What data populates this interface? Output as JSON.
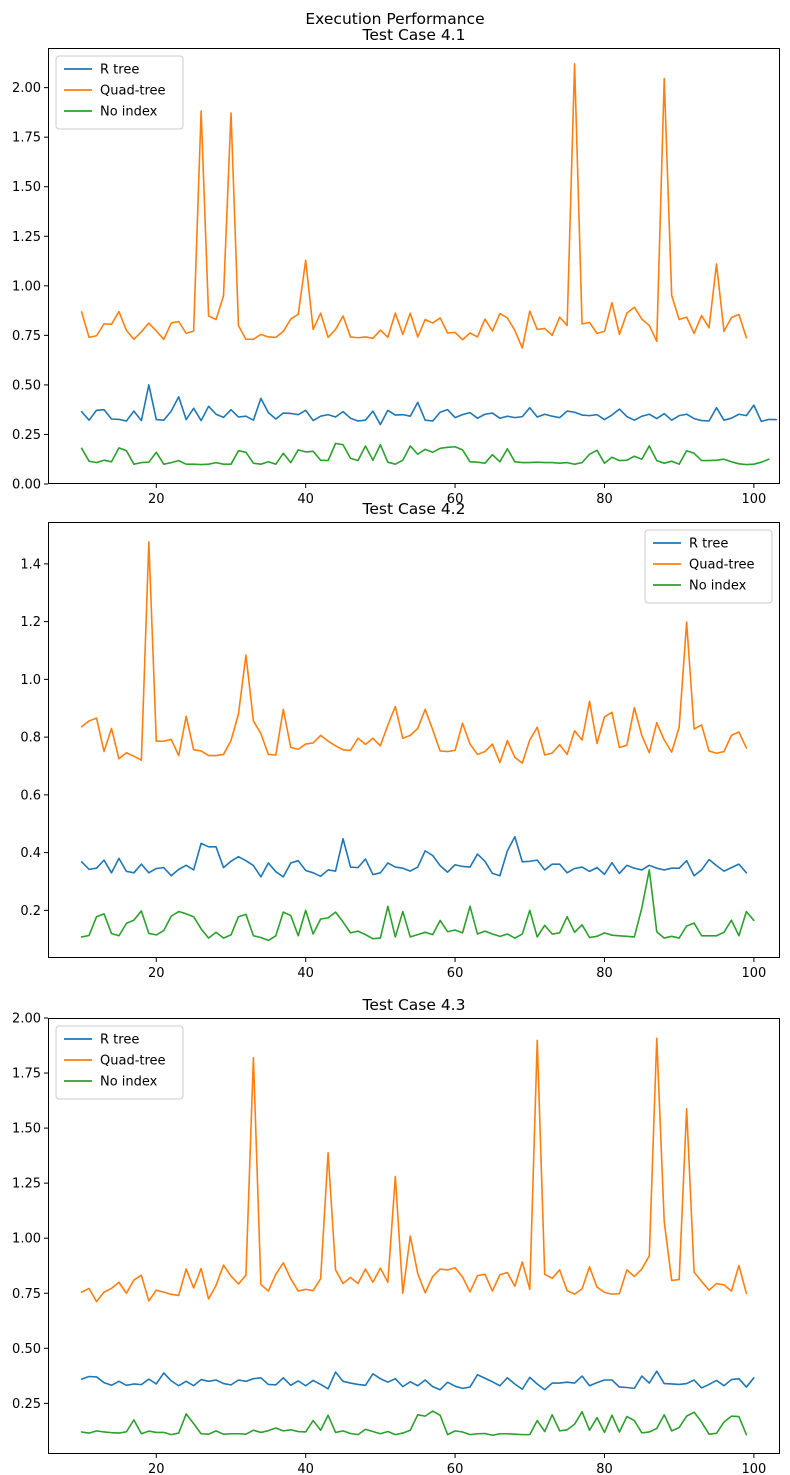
{
  "suptitle": "Execution Performance",
  "chart_data": [
    {
      "type": "line",
      "title": "Test Case 4.1",
      "xlabel": "",
      "ylabel": "",
      "xlim": [
        5.5,
        103.5
      ],
      "ylim": [
        0.0,
        2.2
      ],
      "xticks": [
        20,
        40,
        60,
        80,
        100
      ],
      "yticks": [
        0.0,
        0.25,
        0.5,
        0.75,
        1.0,
        1.25,
        1.5,
        1.75,
        2.0
      ],
      "ytick_labels": [
        "0.00",
        "0.25",
        "0.50",
        "0.75",
        "1.00",
        "1.25",
        "1.50",
        "1.75",
        "2.00"
      ],
      "legend_position": "upper-left",
      "x_start": 10,
      "series": [
        {
          "name": "R tree",
          "color": "#1f77b4",
          "values": [
            0.365,
            0.322,
            0.372,
            0.375,
            0.328,
            0.326,
            0.318,
            0.368,
            0.32,
            0.5,
            0.325,
            0.322,
            0.368,
            0.44,
            0.325,
            0.382,
            0.32,
            0.392,
            0.352,
            0.336,
            0.375,
            0.338,
            0.342,
            0.322,
            0.432,
            0.36,
            0.328,
            0.358,
            0.356,
            0.35,
            0.372,
            0.32,
            0.342,
            0.35,
            0.338,
            0.365,
            0.332,
            0.318,
            0.322,
            0.368,
            0.3,
            0.372,
            0.348,
            0.35,
            0.342,
            0.412,
            0.322,
            0.318,
            0.362,
            0.375,
            0.335,
            0.35,
            0.36,
            0.332,
            0.352,
            0.358,
            0.332,
            0.342,
            0.335,
            0.34,
            0.385,
            0.338,
            0.352,
            0.342,
            0.335,
            0.368,
            0.362,
            0.348,
            0.345,
            0.35,
            0.325,
            0.348,
            0.378,
            0.34,
            0.322,
            0.342,
            0.352,
            0.33,
            0.355,
            0.322,
            0.345,
            0.352,
            0.33,
            0.32,
            0.318,
            0.385,
            0.322,
            0.332,
            0.352,
            0.345,
            0.398,
            0.316,
            0.326,
            0.325
          ]
        },
        {
          "name": "Quad-tree",
          "color": "#ff7f0e",
          "values": [
            0.868,
            0.74,
            0.748,
            0.808,
            0.806,
            0.87,
            0.775,
            0.73,
            0.768,
            0.812,
            0.772,
            0.73,
            0.812,
            0.82,
            0.76,
            0.772,
            1.882,
            0.848,
            0.83,
            0.95,
            1.872,
            0.8,
            0.73,
            0.73,
            0.755,
            0.742,
            0.74,
            0.77,
            0.832,
            0.856,
            1.128,
            0.78,
            0.862,
            0.74,
            0.78,
            0.848,
            0.742,
            0.738,
            0.742,
            0.735,
            0.776,
            0.74,
            0.862,
            0.755,
            0.862,
            0.742,
            0.83,
            0.812,
            0.838,
            0.762,
            0.765,
            0.728,
            0.762,
            0.742,
            0.832,
            0.772,
            0.86,
            0.838,
            0.775,
            0.686,
            0.872,
            0.78,
            0.785,
            0.75,
            0.842,
            0.8,
            2.12,
            0.808,
            0.815,
            0.76,
            0.77,
            0.915,
            0.755,
            0.862,
            0.892,
            0.832,
            0.8,
            0.72,
            2.046,
            0.952,
            0.83,
            0.842,
            0.76,
            0.85,
            0.788,
            1.11,
            0.77,
            0.84,
            0.855,
            0.738
          ]
        },
        {
          "name": "No index",
          "color": "#2ca02c",
          "values": [
            0.18,
            0.115,
            0.108,
            0.12,
            0.112,
            0.182,
            0.168,
            0.1,
            0.108,
            0.11,
            0.16,
            0.1,
            0.108,
            0.118,
            0.1,
            0.1,
            0.098,
            0.1,
            0.108,
            0.1,
            0.1,
            0.168,
            0.16,
            0.105,
            0.1,
            0.112,
            0.1,
            0.155,
            0.108,
            0.172,
            0.162,
            0.165,
            0.12,
            0.118,
            0.205,
            0.198,
            0.13,
            0.118,
            0.192,
            0.12,
            0.198,
            0.11,
            0.1,
            0.12,
            0.192,
            0.15,
            0.175,
            0.16,
            0.18,
            0.185,
            0.188,
            0.172,
            0.112,
            0.11,
            0.105,
            0.148,
            0.112,
            0.178,
            0.112,
            0.108,
            0.108,
            0.11,
            0.108,
            0.108,
            0.105,
            0.108,
            0.1,
            0.108,
            0.15,
            0.17,
            0.105,
            0.135,
            0.118,
            0.12,
            0.14,
            0.125,
            0.192,
            0.118,
            0.105,
            0.115,
            0.1,
            0.168,
            0.155,
            0.118,
            0.118,
            0.12,
            0.125,
            0.112,
            0.102,
            0.098,
            0.1,
            0.11,
            0.125
          ]
        }
      ]
    },
    {
      "type": "line",
      "title": "Test Case 4.2",
      "xlabel": "",
      "ylabel": "",
      "xlim": [
        5.5,
        103.5
      ],
      "ylim": [
        0.035,
        1.545
      ],
      "xticks": [
        20,
        40,
        60,
        80,
        100
      ],
      "yticks": [
        0.2,
        0.4,
        0.6,
        0.8,
        1.0,
        1.2,
        1.4
      ],
      "ytick_labels": [
        "0.2",
        "0.4",
        "0.6",
        "0.8",
        "1.0",
        "1.2",
        "1.4"
      ],
      "legend_position": "upper-right",
      "x_start": 10,
      "series": [
        {
          "name": "R tree",
          "color": "#1f77b4",
          "values": [
            0.368,
            0.342,
            0.346,
            0.374,
            0.33,
            0.38,
            0.335,
            0.33,
            0.36,
            0.33,
            0.345,
            0.348,
            0.32,
            0.342,
            0.356,
            0.34,
            0.432,
            0.42,
            0.42,
            0.348,
            0.37,
            0.386,
            0.372,
            0.355,
            0.316,
            0.364,
            0.334,
            0.316,
            0.364,
            0.372,
            0.338,
            0.33,
            0.318,
            0.34,
            0.336,
            0.448,
            0.35,
            0.348,
            0.378,
            0.324,
            0.33,
            0.364,
            0.35,
            0.346,
            0.336,
            0.35,
            0.406,
            0.39,
            0.355,
            0.332,
            0.358,
            0.352,
            0.35,
            0.395,
            0.37,
            0.328,
            0.32,
            0.406,
            0.455,
            0.368,
            0.37,
            0.374,
            0.34,
            0.36,
            0.36,
            0.33,
            0.345,
            0.35,
            0.335,
            0.348,
            0.325,
            0.365,
            0.328,
            0.356,
            0.346,
            0.34,
            0.356,
            0.346,
            0.34,
            0.346,
            0.346,
            0.372,
            0.32,
            0.34,
            0.376,
            0.355,
            0.336,
            0.348,
            0.36,
            0.33
          ]
        },
        {
          "name": "Quad-tree",
          "color": "#ff7f0e",
          "values": [
            0.836,
            0.856,
            0.866,
            0.75,
            0.83,
            0.725,
            0.746,
            0.734,
            0.72,
            1.476,
            0.786,
            0.786,
            0.792,
            0.736,
            0.872,
            0.756,
            0.752,
            0.736,
            0.736,
            0.74,
            0.788,
            0.88,
            1.084,
            0.856,
            0.812,
            0.74,
            0.738,
            0.896,
            0.764,
            0.758,
            0.776,
            0.78,
            0.806,
            0.786,
            0.77,
            0.756,
            0.754,
            0.796,
            0.775,
            0.796,
            0.77,
            0.842,
            0.906,
            0.796,
            0.806,
            0.83,
            0.896,
            0.826,
            0.752,
            0.75,
            0.754,
            0.848,
            0.776,
            0.74,
            0.75,
            0.776,
            0.712,
            0.788,
            0.73,
            0.71,
            0.79,
            0.834,
            0.738,
            0.745,
            0.774,
            0.74,
            0.822,
            0.79,
            0.924,
            0.778,
            0.87,
            0.886,
            0.764,
            0.772,
            0.902,
            0.806,
            0.746,
            0.85,
            0.79,
            0.748,
            0.834,
            1.198,
            0.828,
            0.842,
            0.752,
            0.744,
            0.75,
            0.806,
            0.818,
            0.762
          ]
        },
        {
          "name": "No index",
          "color": "#2ca02c",
          "values": [
            0.108,
            0.113,
            0.178,
            0.188,
            0.12,
            0.112,
            0.155,
            0.166,
            0.198,
            0.12,
            0.115,
            0.13,
            0.18,
            0.196,
            0.188,
            0.178,
            0.136,
            0.104,
            0.124,
            0.104,
            0.115,
            0.178,
            0.186,
            0.112,
            0.106,
            0.096,
            0.112,
            0.194,
            0.182,
            0.112,
            0.2,
            0.118,
            0.17,
            0.174,
            0.194,
            0.16,
            0.122,
            0.128,
            0.116,
            0.102,
            0.104,
            0.214,
            0.108,
            0.196,
            0.108,
            0.116,
            0.124,
            0.116,
            0.165,
            0.126,
            0.132,
            0.122,
            0.214,
            0.118,
            0.128,
            0.118,
            0.11,
            0.118,
            0.104,
            0.118,
            0.2,
            0.108,
            0.148,
            0.118,
            0.122,
            0.178,
            0.124,
            0.15,
            0.106,
            0.11,
            0.122,
            0.114,
            0.112,
            0.11,
            0.108,
            0.208,
            0.34,
            0.126,
            0.104,
            0.11,
            0.104,
            0.146,
            0.156,
            0.112,
            0.112,
            0.112,
            0.124,
            0.166,
            0.112,
            0.196,
            0.165
          ]
        }
      ]
    },
    {
      "type": "line",
      "title": "Test Case 4.3",
      "xlabel": "",
      "ylabel": "",
      "xlim": [
        5.5,
        103.5
      ],
      "ylim": [
        0.02,
        2.0
      ],
      "xticks": [
        20,
        40,
        60,
        80,
        100
      ],
      "yticks": [
        0.25,
        0.5,
        0.75,
        1.0,
        1.25,
        1.5,
        1.75,
        2.0
      ],
      "ytick_labels": [
        "0.25",
        "0.50",
        "0.75",
        "1.00",
        "1.25",
        "1.50",
        "1.75",
        "2.00"
      ],
      "legend_position": "upper-left",
      "x_start": 10,
      "series": [
        {
          "name": "R tree",
          "color": "#1f77b4",
          "values": [
            0.36,
            0.372,
            0.37,
            0.344,
            0.332,
            0.35,
            0.332,
            0.338,
            0.335,
            0.36,
            0.338,
            0.388,
            0.352,
            0.33,
            0.35,
            0.33,
            0.358,
            0.35,
            0.356,
            0.34,
            0.334,
            0.356,
            0.35,
            0.362,
            0.366,
            0.336,
            0.334,
            0.366,
            0.332,
            0.352,
            0.33,
            0.354,
            0.336,
            0.316,
            0.392,
            0.35,
            0.342,
            0.336,
            0.332,
            0.384,
            0.362,
            0.346,
            0.362,
            0.326,
            0.348,
            0.33,
            0.356,
            0.326,
            0.312,
            0.346,
            0.328,
            0.318,
            0.324,
            0.38,
            0.364,
            0.348,
            0.33,
            0.366,
            0.338,
            0.314,
            0.368,
            0.338,
            0.312,
            0.342,
            0.342,
            0.346,
            0.342,
            0.374,
            0.33,
            0.344,
            0.356,
            0.356,
            0.324,
            0.322,
            0.318,
            0.374,
            0.342,
            0.396,
            0.34,
            0.338,
            0.336,
            0.34,
            0.356,
            0.32,
            0.336,
            0.354,
            0.33,
            0.358,
            0.362,
            0.324,
            0.366
          ]
        },
        {
          "name": "Quad-tree",
          "color": "#ff7f0e",
          "values": [
            0.755,
            0.772,
            0.712,
            0.755,
            0.772,
            0.8,
            0.75,
            0.81,
            0.832,
            0.715,
            0.764,
            0.755,
            0.745,
            0.74,
            0.86,
            0.774,
            0.862,
            0.724,
            0.786,
            0.878,
            0.828,
            0.792,
            0.832,
            1.82,
            0.79,
            0.76,
            0.836,
            0.888,
            0.816,
            0.76,
            0.768,
            0.762,
            0.816,
            1.388,
            0.856,
            0.794,
            0.822,
            0.794,
            0.86,
            0.8,
            0.864,
            0.8,
            1.28,
            0.75,
            1.01,
            0.84,
            0.752,
            0.826,
            0.86,
            0.856,
            0.866,
            0.824,
            0.756,
            0.83,
            0.836,
            0.76,
            0.834,
            0.844,
            0.782,
            0.892,
            0.768,
            1.898,
            0.836,
            0.818,
            0.856,
            0.762,
            0.746,
            0.77,
            0.87,
            0.778,
            0.754,
            0.746,
            0.748,
            0.856,
            0.826,
            0.86,
            0.92,
            1.908,
            1.076,
            0.808,
            0.812,
            1.588,
            0.846,
            0.804,
            0.764,
            0.794,
            0.788,
            0.76,
            0.876,
            0.75
          ]
        },
        {
          "name": "No index",
          "color": "#2ca02c",
          "values": [
            0.12,
            0.115,
            0.125,
            0.12,
            0.117,
            0.115,
            0.121,
            0.175,
            0.112,
            0.124,
            0.118,
            0.118,
            0.108,
            0.115,
            0.202,
            0.158,
            0.112,
            0.11,
            0.125,
            0.11,
            0.112,
            0.112,
            0.11,
            0.128,
            0.118,
            0.126,
            0.138,
            0.125,
            0.13,
            0.122,
            0.12,
            0.172,
            0.128,
            0.196,
            0.118,
            0.125,
            0.113,
            0.108,
            0.132,
            0.122,
            0.112,
            0.122,
            0.108,
            0.115,
            0.128,
            0.198,
            0.192,
            0.215,
            0.196,
            0.108,
            0.125,
            0.12,
            0.108,
            0.112,
            0.113,
            0.105,
            0.112,
            0.112,
            0.11,
            0.108,
            0.108,
            0.172,
            0.122,
            0.198,
            0.125,
            0.13,
            0.155,
            0.212,
            0.128,
            0.185,
            0.118,
            0.196,
            0.12,
            0.19,
            0.172,
            0.116,
            0.12,
            0.136,
            0.198,
            0.125,
            0.14,
            0.192,
            0.21,
            0.165,
            0.11,
            0.114,
            0.165,
            0.192,
            0.19,
            0.108
          ]
        }
      ]
    }
  ]
}
